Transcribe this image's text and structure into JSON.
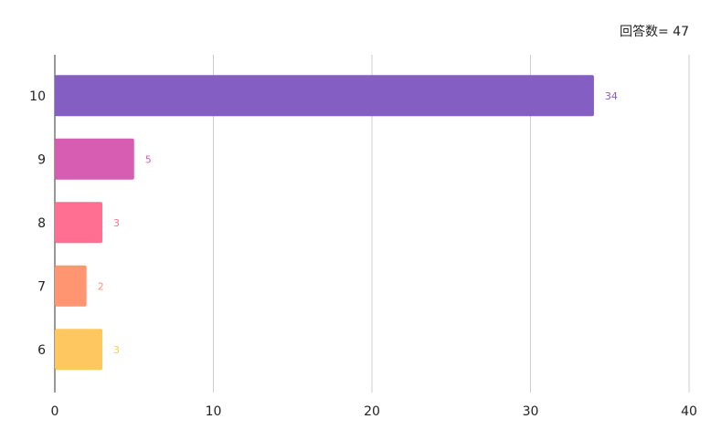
{
  "response_count": {
    "label": "回答数",
    "value": "47",
    "text": "回答数= 47"
  },
  "chart_data": {
    "type": "bar",
    "orientation": "horizontal",
    "categories": [
      "10",
      "9",
      "8",
      "7",
      "6"
    ],
    "values": [
      34,
      5,
      3,
      2,
      3
    ],
    "value_labels": [
      "34",
      "5",
      "3",
      "2",
      "3"
    ],
    "colors": [
      "#845EC2",
      "#D65DB1",
      "#FF6F91",
      "#FF9671",
      "#FFC75F"
    ],
    "xlim": [
      0,
      40
    ],
    "xticks": [
      0,
      10,
      20,
      30,
      40
    ],
    "xtick_labels": [
      "0",
      "10",
      "20",
      "30",
      "40"
    ],
    "grid": "vertical",
    "title": "",
    "xlabel": "",
    "ylabel": ""
  }
}
